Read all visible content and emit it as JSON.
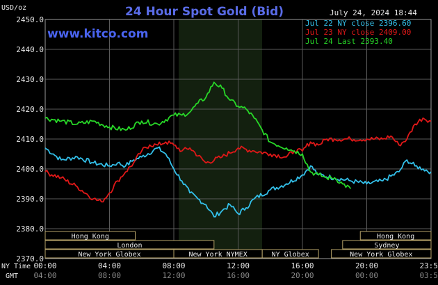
{
  "chart_data": {
    "type": "line",
    "title": "24 Hour Spot Gold (Bid)",
    "brand": "www.kitco.com",
    "timestamp": "July 24, 2024 18:44",
    "yunit": "USD/oz",
    "ylim": [
      2370,
      2450
    ],
    "yticks": [
      "2450.0",
      "2440.0",
      "2430.0",
      "2420.0",
      "2410.0",
      "2400.0",
      "2390.0",
      "2380.0",
      "2370.0"
    ],
    "x_row1_label": "NY Time",
    "x_row2_label": "GMT",
    "x_ticks_ny": [
      "00:00",
      "04:00",
      "08:00",
      "12:00",
      "16:00",
      "20:00",
      "23:59"
    ],
    "x_ticks_gmt": [
      "04:00",
      "08:00",
      "12:00",
      "16:00",
      "20:00",
      "00:00",
      "03:59"
    ],
    "grid": true,
    "legend_position": "top-right",
    "series": [
      {
        "name": "Jul 22 NY close 2396.60",
        "color": "#33c0ea",
        "points": [
          [
            0,
            2407
          ],
          [
            0.5,
            2405
          ],
          [
            1,
            2403
          ],
          [
            2,
            2404
          ],
          [
            3,
            2402
          ],
          [
            4,
            2401
          ],
          [
            4.5,
            2402
          ],
          [
            5,
            2401
          ],
          [
            5.5,
            2403
          ],
          [
            6,
            2404
          ],
          [
            7,
            2407
          ],
          [
            7.5,
            2405
          ],
          [
            8,
            2400
          ],
          [
            8.5,
            2396
          ],
          [
            9,
            2392
          ],
          [
            9.5,
            2390
          ],
          [
            10,
            2388
          ],
          [
            10.5,
            2384
          ],
          [
            11,
            2386
          ],
          [
            11.5,
            2388
          ],
          [
            12,
            2385
          ],
          [
            12.5,
            2387
          ],
          [
            13,
            2390
          ],
          [
            14,
            2393
          ],
          [
            15,
            2395
          ],
          [
            16,
            2398
          ],
          [
            16.5,
            2401
          ],
          [
            17,
            2398
          ],
          [
            18,
            2397
          ],
          [
            19,
            2396
          ],
          [
            20,
            2395
          ],
          [
            21,
            2396
          ],
          [
            22,
            2399
          ],
          [
            22.5,
            2403
          ],
          [
            23,
            2401
          ],
          [
            23.5,
            2400
          ],
          [
            24,
            2399
          ]
        ]
      },
      {
        "name": "Jul 23 NY close 2409.00",
        "color": "#e01818",
        "points": [
          [
            0,
            2399
          ],
          [
            1,
            2397
          ],
          [
            2,
            2394
          ],
          [
            3,
            2390
          ],
          [
            3.5,
            2389
          ],
          [
            4,
            2392
          ],
          [
            4.5,
            2396
          ],
          [
            5,
            2399
          ],
          [
            5.5,
            2402
          ],
          [
            6,
            2406
          ],
          [
            6.5,
            2408
          ],
          [
            7,
            2408
          ],
          [
            7.5,
            2409
          ],
          [
            8,
            2408
          ],
          [
            8.5,
            2406
          ],
          [
            9,
            2407
          ],
          [
            10,
            2402
          ],
          [
            11,
            2404
          ],
          [
            12,
            2407
          ],
          [
            13,
            2406
          ],
          [
            14,
            2405
          ],
          [
            15,
            2404
          ],
          [
            15.5,
            2406
          ],
          [
            16,
            2406
          ],
          [
            16.5,
            2409
          ],
          [
            17,
            2408
          ],
          [
            17.5,
            2410
          ],
          [
            18,
            2410
          ],
          [
            19,
            2410
          ],
          [
            20,
            2410
          ],
          [
            21,
            2410
          ],
          [
            21.5,
            2411
          ],
          [
            22,
            2408
          ],
          [
            22.5,
            2410
          ],
          [
            23,
            2415
          ],
          [
            23.5,
            2417
          ],
          [
            24,
            2416
          ]
        ]
      },
      {
        "name": "Jul 24 Last 2393.40",
        "color": "#28d828",
        "points": [
          [
            0,
            2417
          ],
          [
            1,
            2416
          ],
          [
            2,
            2415
          ],
          [
            3,
            2416
          ],
          [
            4,
            2414
          ],
          [
            5,
            2413
          ],
          [
            6,
            2416
          ],
          [
            7,
            2415
          ],
          [
            8,
            2418
          ],
          [
            8.5,
            2418
          ],
          [
            9,
            2419
          ],
          [
            9.5,
            2422
          ],
          [
            10,
            2424
          ],
          [
            10.5,
            2429
          ],
          [
            11,
            2427
          ],
          [
            11.5,
            2423
          ],
          [
            12,
            2421
          ],
          [
            12.5,
            2420
          ],
          [
            13,
            2417
          ],
          [
            13.5,
            2413
          ],
          [
            14,
            2409
          ],
          [
            15,
            2407
          ],
          [
            15.5,
            2406
          ],
          [
            16,
            2405
          ],
          [
            16.5,
            2399
          ],
          [
            17,
            2398
          ],
          [
            17.5,
            2397
          ],
          [
            18,
            2397
          ],
          [
            18.5,
            2395
          ],
          [
            19,
            2393.4
          ]
        ]
      }
    ],
    "sessions": [
      {
        "name": "Hong Kong",
        "row": 0,
        "start": 0,
        "end": 5.6
      },
      {
        "name": "London",
        "row": 1,
        "start": 0,
        "end": 10.5
      },
      {
        "name": "New York Globex",
        "row": 2,
        "start": 0,
        "end": 8
      },
      {
        "name": "New York NYMEX",
        "row": 2,
        "start": 8,
        "end": 13.5
      },
      {
        "name": "NY Globex",
        "row": 2,
        "start": 13.5,
        "end": 17
      },
      {
        "name": "Hong Kong",
        "row": 0,
        "start": 19.6,
        "end": 24
      },
      {
        "name": "Sydney",
        "row": 1,
        "start": 18.5,
        "end": 24
      },
      {
        "name": "New York Globex",
        "row": 2,
        "start": 17.8,
        "end": 24
      }
    ]
  }
}
